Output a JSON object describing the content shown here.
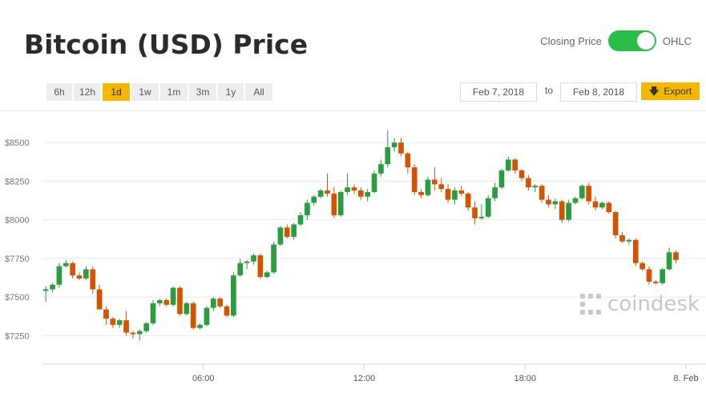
{
  "header": {
    "title": "Bitcoin (USD) Price",
    "toggle_left_label": "Closing Price",
    "toggle_right_label": "OHLC",
    "toggle_state": "OHLC"
  },
  "ranges": [
    {
      "label": "6h",
      "active": false
    },
    {
      "label": "12h",
      "active": false
    },
    {
      "label": "1d",
      "active": true
    },
    {
      "label": "1w",
      "active": false
    },
    {
      "label": "1m",
      "active": false
    },
    {
      "label": "3m",
      "active": false
    },
    {
      "label": "1y",
      "active": false
    },
    {
      "label": "All",
      "active": false
    }
  ],
  "date_range": {
    "from": "Feb 7, 2018",
    "to_label": "to",
    "to": "Feb 8, 2018"
  },
  "export": {
    "label": "Export",
    "icon": "download-arrow-icon"
  },
  "watermark": {
    "text": "coindesk",
    "icon": "coindesk-logo-icon"
  },
  "colors": {
    "up": "#2a9d3f",
    "down": "#d35400",
    "accent": "#f5b800",
    "toggle": "#2bbf4a",
    "grid": "#e9e9e9"
  },
  "chart_data": {
    "type": "candlestick",
    "title": "Bitcoin (USD) Price",
    "y_ticks": [
      {
        "value": 7250,
        "label": "$7250"
      },
      {
        "value": 7500,
        "label": "$7500"
      },
      {
        "value": 7750,
        "label": "$7750"
      },
      {
        "value": 8000,
        "label": "$8000"
      },
      {
        "value": 8250,
        "label": "$8250"
      },
      {
        "value": 8500,
        "label": "$8500"
      }
    ],
    "x_ticks": [
      {
        "hour": 6,
        "label": "06:00"
      },
      {
        "hour": 12,
        "label": "12:00"
      },
      {
        "hour": 18,
        "label": "18:00"
      },
      {
        "hour": 24,
        "label": "8. Feb"
      }
    ],
    "y_range": [
      7050,
      8620
    ],
    "x_range_hours": [
      0,
      24.6
    ],
    "grid": true,
    "interval_minutes": 15,
    "candles": [
      [
        7540,
        7570,
        7470,
        7550
      ],
      [
        7550,
        7590,
        7530,
        7580
      ],
      [
        7580,
        7720,
        7560,
        7700
      ],
      [
        7700,
        7740,
        7690,
        7720
      ],
      [
        7720,
        7730,
        7620,
        7640
      ],
      [
        7640,
        7660,
        7610,
        7620
      ],
      [
        7620,
        7700,
        7610,
        7680
      ],
      [
        7680,
        7700,
        7520,
        7550
      ],
      [
        7550,
        7580,
        7420,
        7420
      ],
      [
        7420,
        7440,
        7320,
        7360
      ],
      [
        7360,
        7370,
        7300,
        7320
      ],
      [
        7320,
        7360,
        7300,
        7350
      ],
      [
        7350,
        7410,
        7250,
        7270
      ],
      [
        7270,
        7280,
        7230,
        7260
      ],
      [
        7260,
        7290,
        7220,
        7280
      ],
      [
        7280,
        7340,
        7270,
        7330
      ],
      [
        7330,
        7480,
        7320,
        7460
      ],
      [
        7460,
        7490,
        7440,
        7480
      ],
      [
        7480,
        7490,
        7440,
        7450
      ],
      [
        7450,
        7570,
        7440,
        7560
      ],
      [
        7560,
        7570,
        7380,
        7390
      ],
      [
        7390,
        7470,
        7380,
        7460
      ],
      [
        7460,
        7470,
        7290,
        7300
      ],
      [
        7300,
        7330,
        7290,
        7320
      ],
      [
        7320,
        7440,
        7310,
        7430
      ],
      [
        7430,
        7500,
        7410,
        7490
      ],
      [
        7490,
        7500,
        7430,
        7440
      ],
      [
        7440,
        7450,
        7370,
        7380
      ],
      [
        7380,
        7660,
        7370,
        7640
      ],
      [
        7640,
        7750,
        7630,
        7720
      ],
      [
        7720,
        7740,
        7680,
        7730
      ],
      [
        7730,
        7780,
        7710,
        7770
      ],
      [
        7770,
        7780,
        7620,
        7630
      ],
      [
        7630,
        7670,
        7620,
        7660
      ],
      [
        7660,
        7860,
        7650,
        7840
      ],
      [
        7840,
        7960,
        7830,
        7950
      ],
      [
        7950,
        7970,
        7880,
        7890
      ],
      [
        7890,
        7980,
        7870,
        7970
      ],
      [
        7970,
        8050,
        7960,
        8030
      ],
      [
        8030,
        8130,
        8000,
        8110
      ],
      [
        8110,
        8160,
        8090,
        8150
      ],
      [
        8150,
        8200,
        8140,
        8190
      ],
      [
        8190,
        8300,
        8150,
        8170
      ],
      [
        8170,
        8210,
        8010,
        8030
      ],
      [
        8030,
        8190,
        8020,
        8180
      ],
      [
        8180,
        8300,
        8160,
        8210
      ],
      [
        8210,
        8230,
        8170,
        8190
      ],
      [
        8190,
        8210,
        8130,
        8150
      ],
      [
        8150,
        8200,
        8120,
        8180
      ],
      [
        8180,
        8320,
        8170,
        8300
      ],
      [
        8300,
        8390,
        8280,
        8360
      ],
      [
        8360,
        8580,
        8340,
        8470
      ],
      [
        8470,
        8530,
        8440,
        8500
      ],
      [
        8500,
        8530,
        8410,
        8430
      ],
      [
        8430,
        8440,
        8300,
        8340
      ],
      [
        8340,
        8360,
        8160,
        8180
      ],
      [
        8180,
        8200,
        8140,
        8160
      ],
      [
        8160,
        8280,
        8150,
        8260
      ],
      [
        8260,
        8340,
        8190,
        8230
      ],
      [
        8230,
        8270,
        8180,
        8200
      ],
      [
        8200,
        8230,
        8110,
        8130
      ],
      [
        8130,
        8210,
        8100,
        8190
      ],
      [
        8190,
        8220,
        8150,
        8170
      ],
      [
        8170,
        8180,
        8060,
        8080
      ],
      [
        8080,
        8120,
        7970,
        8010
      ],
      [
        8010,
        8100,
        8000,
        8020
      ],
      [
        8020,
        8160,
        8010,
        8140
      ],
      [
        8140,
        8240,
        8120,
        8210
      ],
      [
        8210,
        8330,
        8200,
        8320
      ],
      [
        8320,
        8410,
        8310,
        8390
      ],
      [
        8390,
        8400,
        8300,
        8320
      ],
      [
        8320,
        8330,
        8250,
        8270
      ],
      [
        8270,
        8290,
        8190,
        8210
      ],
      [
        8210,
        8230,
        8180,
        8220
      ],
      [
        8220,
        8230,
        8110,
        8130
      ],
      [
        8130,
        8160,
        8080,
        8100
      ],
      [
        8100,
        8140,
        8070,
        8120
      ],
      [
        8120,
        8130,
        7980,
        8000
      ],
      [
        8000,
        8130,
        7990,
        8110
      ],
      [
        8110,
        8150,
        8100,
        8140
      ],
      [
        8140,
        8230,
        8130,
        8220
      ],
      [
        8220,
        8240,
        8100,
        8120
      ],
      [
        8120,
        8150,
        8060,
        8080
      ],
      [
        8080,
        8120,
        8070,
        8110
      ],
      [
        8110,
        8120,
        8040,
        8050
      ],
      [
        8050,
        8060,
        7880,
        7900
      ],
      [
        7900,
        7920,
        7850,
        7860
      ],
      [
        7860,
        7880,
        7840,
        7870
      ],
      [
        7870,
        7880,
        7700,
        7720
      ],
      [
        7720,
        7730,
        7670,
        7680
      ],
      [
        7680,
        7700,
        7580,
        7600
      ],
      [
        7600,
        7610,
        7580,
        7590
      ],
      [
        7590,
        7690,
        7580,
        7680
      ],
      [
        7680,
        7820,
        7670,
        7790
      ],
      [
        7790,
        7800,
        7720,
        7740
      ]
    ]
  }
}
